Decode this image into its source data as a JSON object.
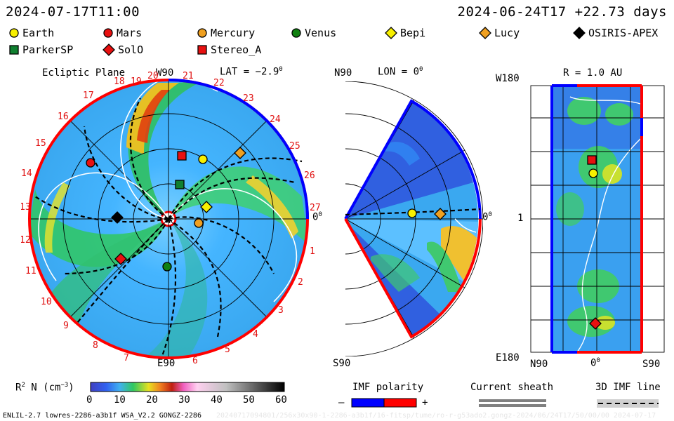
{
  "header": {
    "date_left": "2024-07-17T11:00",
    "date_right": "2024-06-24T17 +22.73 days"
  },
  "legend": [
    {
      "label": "Earth",
      "shape": "circle",
      "color": "#f8f000"
    },
    {
      "label": "Mars",
      "shape": "circle",
      "color": "#e81010"
    },
    {
      "label": "Mercury",
      "shape": "circle",
      "color": "#f0a020"
    },
    {
      "label": "Venus",
      "shape": "circle",
      "color": "#108010"
    },
    {
      "label": "Bepi",
      "shape": "diamond",
      "color": "#f8f000"
    },
    {
      "label": "Lucy",
      "shape": "diamond",
      "color": "#f0a020"
    },
    {
      "label": "OSIRIS-APEX",
      "shape": "diamond",
      "color": "#000000"
    },
    {
      "label": "ParkerSP",
      "shape": "square",
      "color": "#108030"
    },
    {
      "label": "SolO",
      "shape": "diamond",
      "color": "#e81010"
    },
    {
      "label": "Stereo_A",
      "shape": "square",
      "color": "#e81010"
    }
  ],
  "panels": {
    "ecliptic": {
      "title": "Ecliptic Plane",
      "top_label": "W90",
      "lat_label": "LAT = −2.9",
      "lat_sup": "0",
      "right_label": "0",
      "right_sup": "0",
      "bottom_label": "E90",
      "carrington_numbers": [
        "20",
        "21",
        "22",
        "23",
        "24",
        "25",
        "26",
        "27",
        "1",
        "2",
        "3",
        "4",
        "5",
        "6",
        "7",
        "8",
        "9",
        "10",
        "11",
        "12",
        "13",
        "14",
        "15",
        "16",
        "17",
        "18",
        "19"
      ]
    },
    "meridional": {
      "top_left": "N90",
      "lon_label": "LON = 0",
      "lon_sup": "0",
      "right_label": "0",
      "right_sup": "0",
      "bottom_label": "S90"
    },
    "synoptic": {
      "top_left": "W180",
      "r_label": "R = 1.0 AU",
      "mid_left": "1",
      "bottom_left": "E180",
      "x_labels": [
        "N90",
        "0",
        "S90"
      ],
      "x_mid_sup": "0"
    }
  },
  "colorbar": {
    "label": "R",
    "label_sup": "2",
    "label_rest": " N (cm",
    "label_exp": "−3",
    "label_end": ")",
    "ticks": [
      "0",
      "10",
      "20",
      "30",
      "40",
      "50",
      "60"
    ],
    "range": [
      0,
      60
    ]
  },
  "imf_legend": {
    "title": "IMF polarity",
    "minus": "–",
    "plus": "+",
    "neg_color": "#0000ff",
    "pos_color": "#ff0000"
  },
  "current_sheath": {
    "title": "Current sheath"
  },
  "imf_line": {
    "title": "3D IMF line"
  },
  "footer": {
    "left": "ENLIL-2.7 lowres-2286-a3b1f WSA_V2.2 GONGZ-2286",
    "watermark": "20240717094801/256x30x90-1-2286-a3b1f/16-fitsp/tume/ro-r-g53ado2.gongz-2024/06/24T17/50/00/00  2024-07-17"
  }
}
